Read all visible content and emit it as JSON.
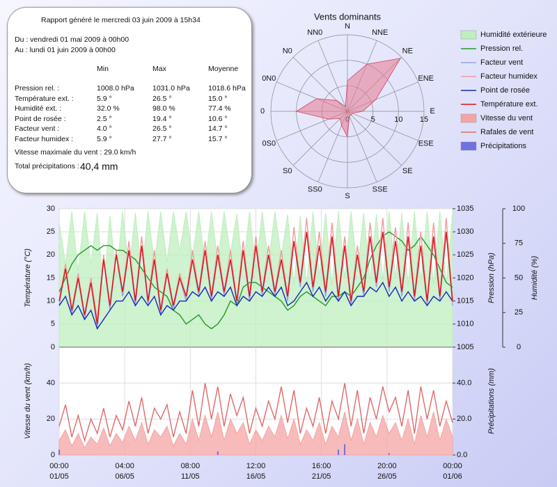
{
  "report": {
    "generated": "Rapport généré le mercredi 03 juin 2009 à 15h34",
    "from": "Du : vendredi 01 mai 2009 à 00h00",
    "to": "Au : lundi 01 juin 2009 à 00h00",
    "columns": [
      "Min",
      "Max",
      "Moyenne"
    ],
    "rows": [
      [
        "Pression rel. :",
        "1008.0 hPa",
        "1031.0 hPa",
        "1018.6 hPa"
      ],
      [
        "Température ext. :",
        "5.9 °",
        "26.5 °",
        "15.0 °"
      ],
      [
        "Humidité ext. :",
        "32.0 %",
        "98.0 %",
        "77.4 %"
      ],
      [
        "Point de rosée :",
        "2.5 °",
        "19.4 °",
        "10.6 °"
      ],
      [
        "Facteur vent :",
        "4.0 °",
        "26.5 °",
        "14.7 °"
      ],
      [
        "Facteur humidex :",
        "5.9 °",
        "27.7 °",
        "15.7 °"
      ]
    ],
    "max_wind": "Vitesse maximale du vent : 29.0 km/h",
    "precip_label": "Total précipitations :",
    "precip_total": "40,4 mm"
  },
  "chart_data": [
    {
      "type": "rose",
      "title": "Vents dominants",
      "color": "#e87890",
      "categories": [
        "N",
        "NNE",
        "NE",
        "ENE",
        "E",
        "ESE",
        "SE",
        "SSE",
        "S",
        "SS0",
        "S0",
        "0S0",
        "0",
        "0N0",
        "N0",
        "NN0"
      ],
      "values": [
        6,
        10,
        14.7,
        6,
        3,
        1,
        1,
        1,
        5,
        3,
        2,
        4,
        10,
        6.5,
        3,
        1
      ],
      "rlim": [
        0,
        15
      ],
      "rticks": [
        0,
        5,
        10,
        15
      ]
    },
    {
      "type": "timeseries",
      "ylabel": "Température (°C)",
      "y2label": "Pression (hPa)",
      "y3label": "Humidité (%)",
      "ylim": [
        0,
        30
      ],
      "yticks": [
        0,
        5,
        10,
        15,
        20,
        25,
        30
      ],
      "y2lim": [
        1005,
        1035
      ],
      "y2ticks": [
        1005,
        1010,
        1015,
        1020,
        1025,
        1030,
        1035
      ],
      "y3lim": [
        0,
        100
      ],
      "y3ticks": [
        0,
        25,
        50,
        75,
        100
      ],
      "xlim": [
        0,
        31
      ],
      "xticks": [
        {
          "value": 0,
          "label": "00:00"
        },
        {
          "value": 5.1667,
          "label": "04:00"
        },
        {
          "value": 10.3333,
          "label": "08:00"
        },
        {
          "value": 15.5,
          "label": "12:00"
        },
        {
          "value": 20.6667,
          "label": "16:00"
        },
        {
          "value": 25.8333,
          "label": "20:00"
        },
        {
          "value": 31,
          "label": "00:00"
        }
      ],
      "xtick_dates": [
        "01/05",
        "06/05",
        "11/05",
        "16/05",
        "21/05",
        "26/05",
        "01/06"
      ],
      "grid": true,
      "x": [
        0,
        0.5,
        1,
        1.5,
        2,
        2.5,
        3,
        3.5,
        4,
        4.5,
        5,
        5.5,
        6,
        6.5,
        7,
        7.5,
        8,
        8.5,
        9,
        9.5,
        10,
        10.5,
        11,
        11.5,
        12,
        12.5,
        13,
        13.5,
        14,
        14.5,
        15,
        15.5,
        16,
        16.5,
        17,
        17.5,
        18,
        18.5,
        19,
        19.5,
        20,
        20.5,
        21,
        21.5,
        22,
        22.5,
        23,
        23.5,
        24,
        24.5,
        25,
        25.5,
        26,
        26.5,
        27,
        27.5,
        28,
        28.5,
        29,
        29.5,
        30,
        30.5,
        31
      ],
      "series": [
        {
          "name": "Humidité extérieure",
          "color": "#bfeebf",
          "kind": "area",
          "axis": "y3",
          "values": [
            90,
            60,
            98,
            55,
            98,
            60,
            97,
            40,
            95,
            50,
            98,
            55,
            97,
            52,
            98,
            60,
            98,
            62,
            98,
            70,
            98,
            65,
            98,
            60,
            98,
            62,
            98,
            68,
            96,
            55,
            98,
            55,
            98,
            60,
            98,
            65,
            96,
            45,
            95,
            45,
            98,
            52,
            97,
            45,
            98,
            50,
            98,
            55,
            97,
            48,
            96,
            48,
            98,
            50,
            97,
            45,
            98,
            48,
            98,
            45,
            98,
            45,
            97
          ]
        },
        {
          "name": "Pression rel.",
          "color": "#229922",
          "kind": "line",
          "axis": "y2",
          "values": [
            1017,
            1020,
            1023,
            1025,
            1026,
            1027,
            1026,
            1027,
            1027,
            1026,
            1026,
            1025,
            1024,
            1022,
            1020,
            1018,
            1017,
            1016,
            1013,
            1012,
            1010,
            1011,
            1012,
            1010,
            1009,
            1010,
            1012,
            1015,
            1014,
            1018,
            1019,
            1019,
            1018,
            1017,
            1016,
            1015,
            1013,
            1014,
            1016,
            1017,
            1016,
            1015,
            1014,
            1016,
            1016,
            1017,
            1016,
            1018,
            1020,
            1024,
            1027,
            1029,
            1030,
            1029,
            1028,
            1026,
            1027,
            1029,
            1027,
            1025,
            1022,
            1019,
            1018
          ]
        },
        {
          "name": "Facteur vent",
          "color": "#9aa0e8",
          "kind": "line",
          "values": [
            9,
            17,
            7,
            15,
            6,
            14,
            4,
            19,
            8,
            20,
            11,
            21,
            9,
            22,
            9,
            19,
            7,
            16,
            8,
            15,
            10,
            19,
            11,
            21,
            10,
            20,
            11,
            19,
            9,
            21,
            10,
            22,
            11,
            20,
            11,
            19,
            10,
            23,
            13,
            25,
            12,
            22,
            11,
            24,
            10,
            22,
            9,
            20,
            11,
            24,
            13,
            25,
            12,
            23,
            11,
            24,
            10,
            22,
            9,
            24,
            10,
            25,
            9
          ]
        },
        {
          "name": "Facteur humidex",
          "color": "#f09a9a",
          "kind": "line",
          "values": [
            10,
            18,
            8,
            16,
            7,
            15,
            6,
            20,
            9,
            21,
            12,
            23,
            10,
            24,
            10,
            21,
            8,
            17,
            9,
            16,
            11,
            21,
            12,
            23,
            11,
            22,
            12,
            21,
            10,
            23,
            11,
            24,
            12,
            22,
            12,
            21,
            11,
            26,
            14,
            28,
            13,
            25,
            12,
            27,
            11,
            24,
            10,
            22,
            12,
            27,
            14,
            28,
            13,
            26,
            12,
            27,
            11,
            25,
            10,
            27,
            11,
            28,
            10
          ]
        },
        {
          "name": "Point de rosée",
          "color": "#1428b4",
          "kind": "line",
          "values": [
            9,
            11,
            7,
            9,
            6,
            8,
            4,
            6,
            8,
            10,
            10,
            12,
            9,
            11,
            9,
            11,
            7,
            9,
            8,
            10,
            10,
            12,
            11,
            13,
            10,
            12,
            11,
            13,
            9,
            11,
            10,
            12,
            11,
            13,
            11,
            13,
            9,
            10,
            12,
            14,
            11,
            13,
            10,
            12,
            10,
            12,
            9,
            11,
            11,
            13,
            12,
            14,
            11,
            13,
            10,
            12,
            10,
            11,
            9,
            11,
            10,
            12,
            10
          ]
        },
        {
          "name": "Température ext.",
          "color": "#dd1111",
          "kind": "line",
          "values": [
            10,
            17,
            8,
            15,
            7,
            14,
            5,
            19,
            9,
            20,
            12,
            21,
            10,
            22,
            10,
            19,
            8,
            16,
            9,
            15,
            11,
            19,
            12,
            21,
            11,
            20,
            12,
            19,
            10,
            21,
            11,
            22,
            12,
            20,
            12,
            19,
            11,
            23,
            14,
            25,
            13,
            22,
            12,
            24,
            11,
            22,
            10,
            20,
            12,
            24,
            14,
            25,
            13,
            23,
            12,
            24,
            11,
            22,
            10,
            24,
            11,
            25,
            10
          ]
        }
      ]
    },
    {
      "type": "timeseries",
      "ylabel": "Vitesse du vent (km/h)",
      "y2label": "Précipitations (mm)",
      "ylim": [
        0,
        60
      ],
      "yticks": [
        0,
        20,
        40
      ],
      "y2lim": [
        0,
        60
      ],
      "y2ticks": [
        {
          "value": 0,
          "label": "0.0"
        },
        {
          "value": 20,
          "label": "20.0"
        },
        {
          "value": 40,
          "label": "40.0"
        }
      ],
      "xlim": [
        0,
        31
      ],
      "grid": true,
      "x": [
        0,
        0.5,
        1,
        1.5,
        2,
        2.5,
        3,
        3.5,
        4,
        4.5,
        5,
        5.5,
        6,
        6.5,
        7,
        7.5,
        8,
        8.5,
        9,
        9.5,
        10,
        10.5,
        11,
        11.5,
        12,
        12.5,
        13,
        13.5,
        14,
        14.5,
        15,
        15.5,
        16,
        16.5,
        17,
        17.5,
        18,
        18.5,
        19,
        19.5,
        20,
        20.5,
        21,
        21.5,
        22,
        22.5,
        23,
        23.5,
        24,
        24.5,
        25,
        25.5,
        26,
        26.5,
        27,
        27.5,
        28,
        28.5,
        29,
        29.5,
        30,
        30.5,
        31
      ],
      "series": [
        {
          "name": "Vitesse du vent",
          "color": "#f4a4a4",
          "kind": "area",
          "values": [
            8,
            14,
            5,
            12,
            4,
            10,
            6,
            15,
            5,
            12,
            7,
            16,
            8,
            18,
            6,
            14,
            10,
            16,
            5,
            12,
            6,
            20,
            8,
            22,
            10,
            24,
            8,
            20,
            12,
            18,
            6,
            14,
            8,
            16,
            10,
            22,
            9,
            20,
            6,
            14,
            8,
            18,
            6,
            16,
            10,
            24,
            8,
            20,
            6,
            18,
            10,
            22,
            12,
            18,
            8,
            20,
            6,
            22,
            10,
            24,
            8,
            20,
            10
          ]
        },
        {
          "name": "Rafales de vent",
          "color": "#e06868",
          "kind": "line",
          "values": [
            16,
            28,
            10,
            22,
            8,
            20,
            12,
            26,
            10,
            22,
            14,
            30,
            16,
            32,
            12,
            26,
            20,
            28,
            10,
            24,
            12,
            36,
            16,
            40,
            20,
            38,
            16,
            34,
            22,
            32,
            12,
            26,
            16,
            30,
            20,
            38,
            18,
            36,
            12,
            26,
            16,
            32,
            12,
            30,
            20,
            40,
            16,
            36,
            12,
            32,
            20,
            38,
            24,
            32,
            16,
            36,
            12,
            38,
            20,
            36,
            16,
            30,
            18
          ]
        },
        {
          "name": "Précipitations",
          "color": "#7070e0",
          "kind": "bar",
          "axis": "y2",
          "values": [
            3,
            0,
            0,
            0,
            0,
            0,
            0,
            0,
            0,
            0,
            0,
            0,
            0,
            0,
            0,
            0,
            0,
            0,
            0,
            0,
            0,
            0,
            0,
            0,
            0,
            2,
            0,
            0,
            0,
            0,
            0,
            0,
            0,
            0,
            0,
            0,
            0,
            0,
            0,
            0,
            0,
            0,
            0,
            0,
            3,
            6,
            0,
            0,
            0,
            0,
            0,
            0,
            1,
            0,
            0,
            0,
            0,
            0,
            0,
            0,
            0,
            0,
            0
          ]
        }
      ]
    }
  ]
}
